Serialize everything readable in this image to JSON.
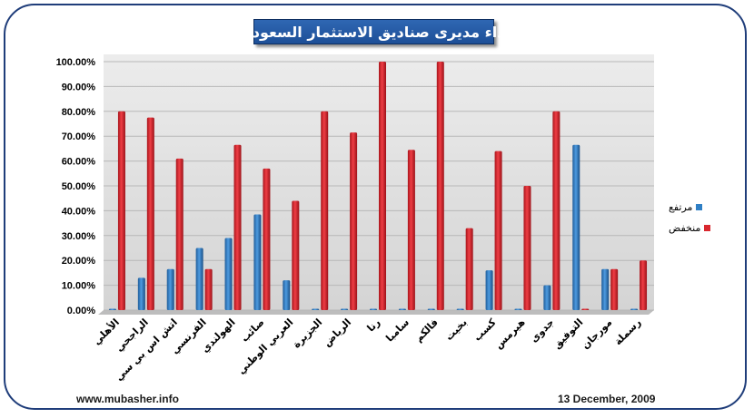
{
  "chart_data": {
    "type": "bar",
    "title": "اداء مديرى صناديق الاستثمار السعودية",
    "categories": [
      "الأهلي",
      "الراجحي",
      "اتش اس بي سي",
      "الفرنسي",
      "الهولندي",
      "صائب",
      "العربي الوطني",
      "الجزيرة",
      "الرياض",
      "رنا",
      "سامبا",
      "فالكم",
      "بخيت",
      "كسب",
      "هيرمس",
      "جدوى",
      "التوفيق",
      "مورجان",
      "رسملة"
    ],
    "series": [
      {
        "name": "مرتفع",
        "color": "#2f7fc5",
        "values": [
          0,
          13,
          16.5,
          25,
          29,
          38.5,
          12,
          0,
          0,
          0,
          0,
          0,
          0,
          16,
          0,
          10,
          66.5,
          16.5,
          0
        ]
      },
      {
        "name": "منخفض",
        "color": "#d9282f",
        "values": [
          80,
          77.5,
          61,
          16.5,
          66.5,
          57,
          44,
          80,
          71.5,
          100,
          64.5,
          100,
          33,
          64,
          50,
          80,
          0,
          16.5,
          20
        ]
      }
    ],
    "ylim": [
      0,
      100
    ],
    "yticks": [
      "0.00%",
      "10.00%",
      "20.00%",
      "30.00%",
      "40.00%",
      "50.00%",
      "60.00%",
      "70.00%",
      "80.00%",
      "90.00%",
      "100.00%"
    ],
    "xlabel": "",
    "ylabel": "",
    "legend": "right"
  },
  "footer": {
    "website": "www.mubasher.info",
    "date": "13 December, 2009"
  }
}
